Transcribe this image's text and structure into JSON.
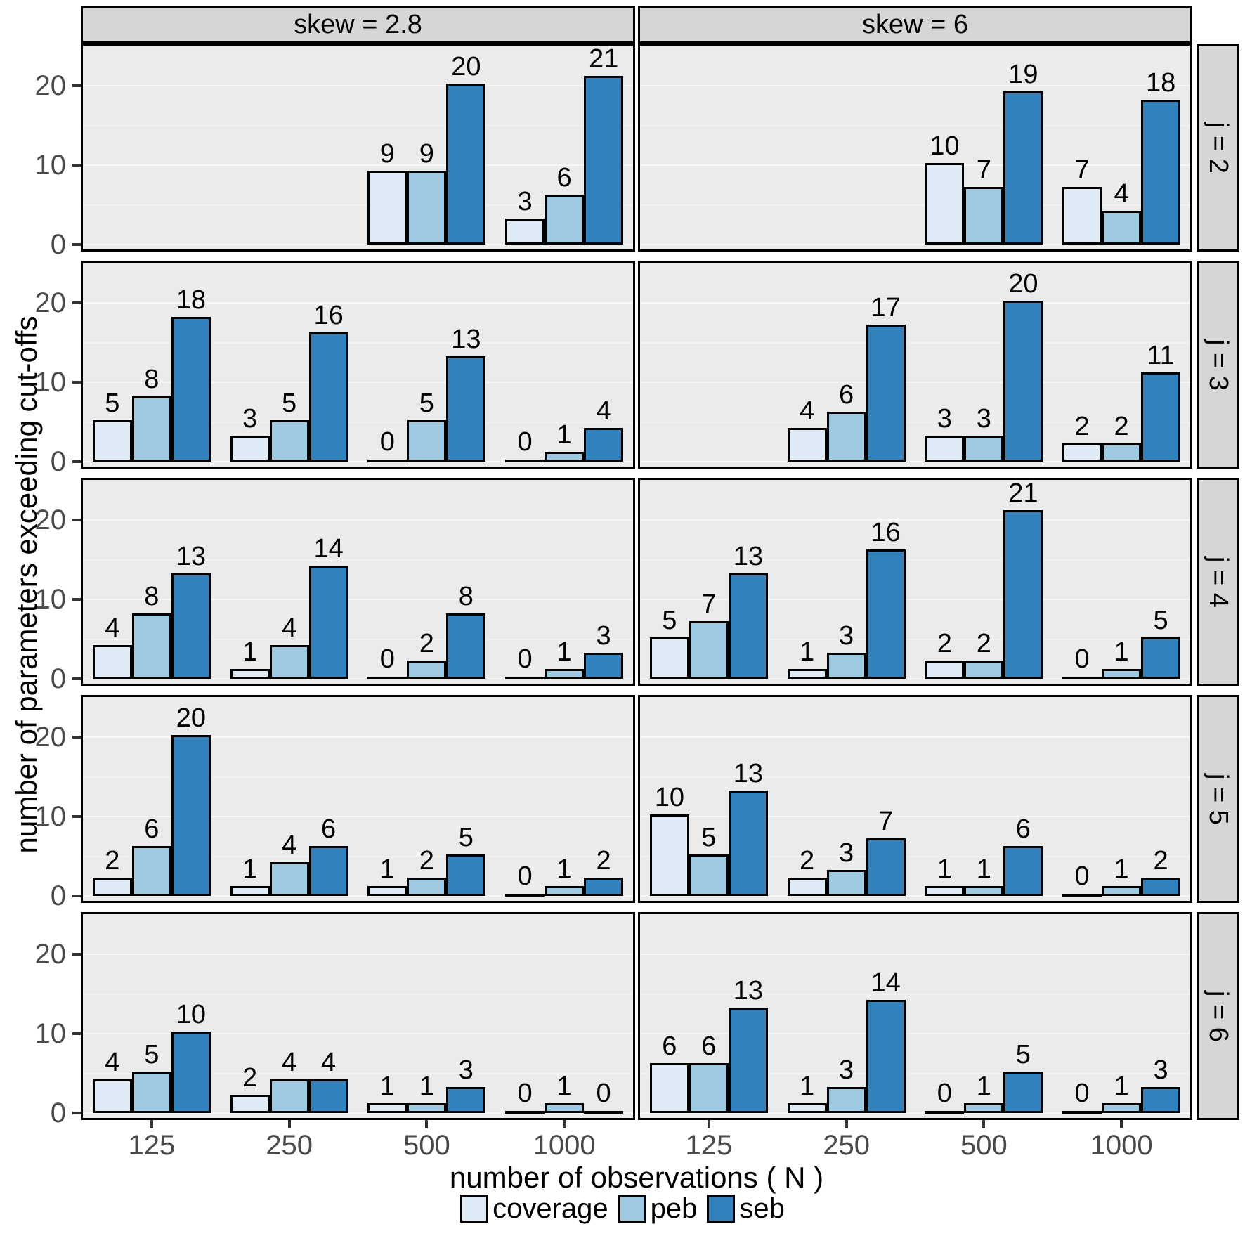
{
  "chart_data": {
    "type": "bar",
    "title": "",
    "xlabel": "number of observations ( N )",
    "ylabel": "number of parameters exceeding cut-offs",
    "x_categories": [
      "125",
      "250",
      "500",
      "1000"
    ],
    "y_ticks": [
      0,
      10,
      20
    ],
    "y_minor_ticks": [
      5,
      15
    ],
    "ylim": [
      0,
      24
    ],
    "grid": "on",
    "legend_position": "bottom",
    "col_facets": [
      "skew = 2.8",
      "skew = 6"
    ],
    "row_facets": [
      "j = 2",
      "j = 3",
      "j = 4",
      "j = 5",
      "j = 6"
    ],
    "series": [
      {
        "name": "coverage",
        "color": "#deebf7"
      },
      {
        "name": "peb",
        "color": "#9ecae1"
      },
      {
        "name": "seb",
        "color": "#3182bd"
      }
    ],
    "panels": [
      {
        "row_facet": "j = 2",
        "col_facet": "skew = 2.8",
        "values": {
          "coverage": [
            null,
            null,
            9,
            3
          ],
          "peb": [
            null,
            null,
            9,
            6
          ],
          "seb": [
            null,
            null,
            20,
            21
          ]
        }
      },
      {
        "row_facet": "j = 2",
        "col_facet": "skew = 6",
        "values": {
          "coverage": [
            null,
            null,
            10,
            7
          ],
          "peb": [
            null,
            null,
            7,
            4
          ],
          "seb": [
            null,
            null,
            19,
            18
          ]
        }
      },
      {
        "row_facet": "j = 3",
        "col_facet": "skew = 2.8",
        "values": {
          "coverage": [
            5,
            3,
            0,
            0
          ],
          "peb": [
            8,
            5,
            5,
            1
          ],
          "seb": [
            18,
            16,
            13,
            4
          ]
        }
      },
      {
        "row_facet": "j = 3",
        "col_facet": "skew = 6",
        "values": {
          "coverage": [
            null,
            4,
            3,
            2
          ],
          "peb": [
            null,
            6,
            3,
            2
          ],
          "seb": [
            null,
            17,
            20,
            11
          ]
        }
      },
      {
        "row_facet": "j = 4",
        "col_facet": "skew = 2.8",
        "values": {
          "coverage": [
            4,
            1,
            0,
            0
          ],
          "peb": [
            8,
            4,
            2,
            1
          ],
          "seb": [
            13,
            14,
            8,
            3
          ]
        }
      },
      {
        "row_facet": "j = 4",
        "col_facet": "skew = 6",
        "values": {
          "coverage": [
            5,
            1,
            2,
            0
          ],
          "peb": [
            7,
            3,
            2,
            1
          ],
          "seb": [
            13,
            16,
            21,
            5
          ]
        }
      },
      {
        "row_facet": "j = 5",
        "col_facet": "skew = 2.8",
        "values": {
          "coverage": [
            2,
            1,
            1,
            0
          ],
          "peb": [
            6,
            4,
            2,
            1
          ],
          "seb": [
            20,
            6,
            5,
            2
          ]
        }
      },
      {
        "row_facet": "j = 5",
        "col_facet": "skew = 6",
        "values": {
          "coverage": [
            10,
            2,
            1,
            0
          ],
          "peb": [
            5,
            3,
            1,
            1
          ],
          "seb": [
            13,
            7,
            6,
            2
          ]
        }
      },
      {
        "row_facet": "j = 6",
        "col_facet": "skew = 2.8",
        "values": {
          "coverage": [
            4,
            2,
            1,
            0
          ],
          "peb": [
            5,
            4,
            1,
            1
          ],
          "seb": [
            10,
            4,
            3,
            0
          ]
        }
      },
      {
        "row_facet": "j = 6",
        "col_facet": "skew = 6",
        "values": {
          "coverage": [
            6,
            1,
            0,
            0
          ],
          "peb": [
            6,
            3,
            1,
            1
          ],
          "seb": [
            13,
            14,
            5,
            3
          ]
        }
      }
    ],
    "colors": {
      "panel_bg": "#ebebeb",
      "strip_bg": "#d6d6d6",
      "grid_major": "#f7f7f7",
      "grid_minor": "#f1f1f1",
      "bar_border": "#000000",
      "tick_label": "#4a4a4a"
    }
  }
}
